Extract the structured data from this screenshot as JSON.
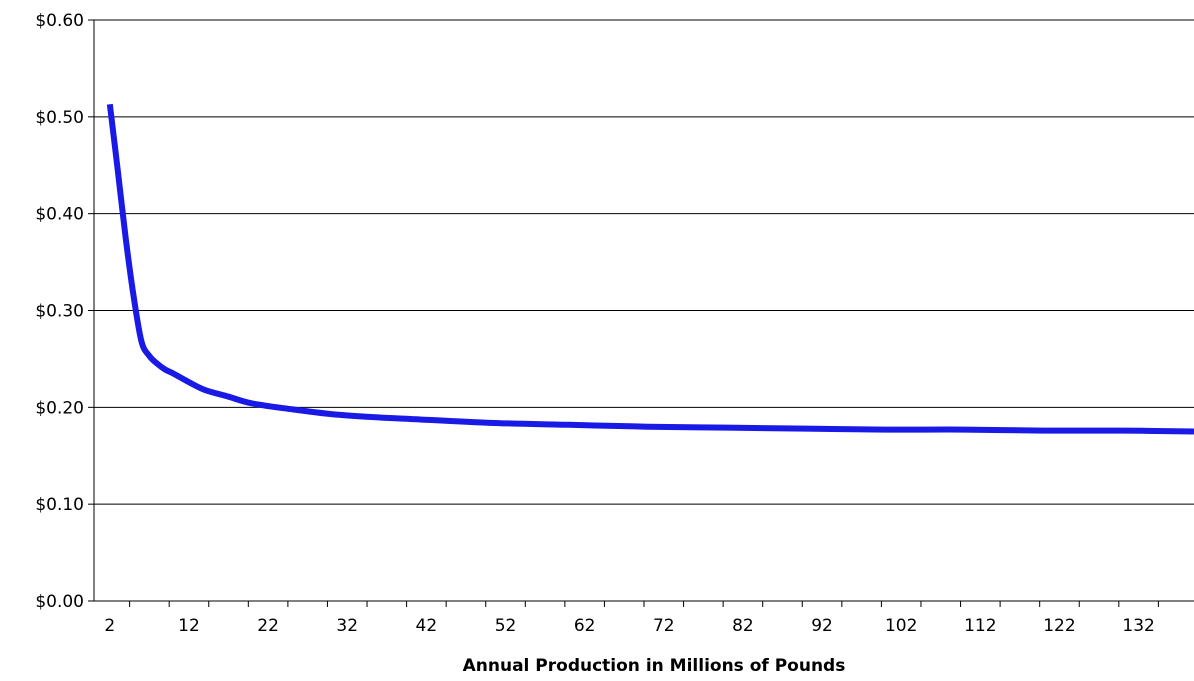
{
  "chart_data": {
    "type": "line",
    "title": "",
    "xlabel": "Annual Production in Millions of Pounds",
    "ylabel": "",
    "xlim": [
      0,
      139
    ],
    "ylim": [
      0,
      0.6
    ],
    "x_ticks": [
      2,
      12,
      22,
      32,
      42,
      52,
      62,
      72,
      82,
      92,
      102,
      112,
      122,
      132
    ],
    "y_ticks": [
      0,
      0.1,
      0.2,
      0.3,
      0.4,
      0.5,
      0.6
    ],
    "y_tick_labels": [
      "$0.00",
      "$0.10",
      "$0.20",
      "$0.30",
      "$0.40",
      "$0.50",
      "$0.60"
    ],
    "grid": "horizontal",
    "legend": "none",
    "series": [
      {
        "color": "#1a1ae6",
        "x": [
          2,
          3,
          4,
          5,
          6,
          7,
          8,
          9,
          10,
          12,
          14,
          17,
          20,
          25,
          30,
          35,
          40,
          50,
          60,
          70,
          80,
          90,
          100,
          110,
          120,
          130,
          139
        ],
        "y": [
          0.513,
          0.445,
          0.375,
          0.315,
          0.268,
          0.253,
          0.245,
          0.239,
          0.235,
          0.226,
          0.218,
          0.211,
          0.204,
          0.198,
          0.193,
          0.19,
          0.188,
          0.184,
          0.182,
          0.18,
          0.179,
          0.178,
          0.177,
          0.177,
          0.176,
          0.176,
          0.175
        ]
      }
    ]
  }
}
